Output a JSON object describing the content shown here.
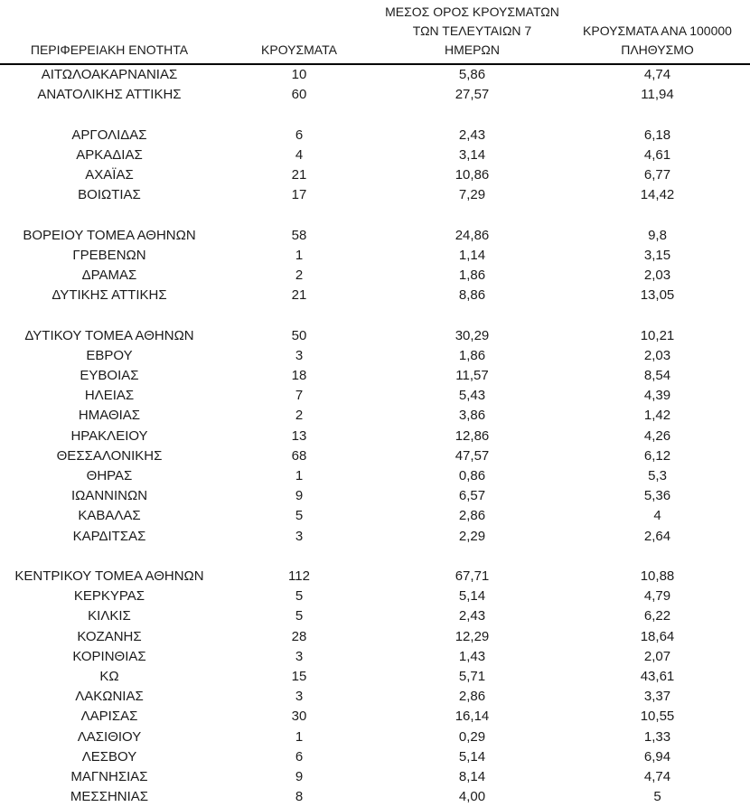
{
  "page": {
    "background_color": "#ffffff",
    "text_color": "#1b1b1b",
    "header_rule_color": "#000000"
  },
  "table": {
    "columns": [
      "ΠΕΡΙΦΕΡΕΙΑΚΗ ΕΝΟΤΗΤΑ",
      "ΚΡΟΥΣΜΑΤΑ",
      "ΜΕΣΟΣ ΟΡΟΣ ΚΡΟΥΣΜΑΤΩΝ\nΤΩΝ ΤΕΛΕΥΤΑΙΩΝ 7\nΗΜΕΡΩΝ",
      "ΚΡΟΥΣΜΑΤΑ ΑΝΑ 100000\nΠΛΗΘΥΣΜΟ"
    ],
    "groups": [
      {
        "rows": [
          [
            "ΑΙΤΩΛΟΑΚΑΡΝΑΝΙΑΣ",
            "10",
            "5,86",
            "4,74"
          ],
          [
            "ΑΝΑΤΟΛΙΚΗΣ ΑΤΤΙΚΗΣ",
            "60",
            "27,57",
            "11,94"
          ]
        ]
      },
      {
        "rows": [
          [
            "ΑΡΓΟΛΙΔΑΣ",
            "6",
            "2,43",
            "6,18"
          ],
          [
            "ΑΡΚΑΔΙΑΣ",
            "4",
            "3,14",
            "4,61"
          ],
          [
            "ΑΧΑΪΑΣ",
            "21",
            "10,86",
            "6,77"
          ],
          [
            "ΒΟΙΩΤΙΑΣ",
            "17",
            "7,29",
            "14,42"
          ]
        ]
      },
      {
        "rows": [
          [
            "ΒΟΡΕΙΟΥ ΤΟΜΕΑ ΑΘΗΝΩΝ",
            "58",
            "24,86",
            "9,8"
          ],
          [
            "ΓΡΕΒΕΝΩΝ",
            "1",
            "1,14",
            "3,15"
          ],
          [
            "ΔΡΑΜΑΣ",
            "2",
            "1,86",
            "2,03"
          ],
          [
            "ΔΥΤΙΚΗΣ ΑΤΤΙΚΗΣ",
            "21",
            "8,86",
            "13,05"
          ]
        ]
      },
      {
        "rows": [
          [
            "ΔΥΤΙΚΟΥ ΤΟΜΕΑ ΑΘΗΝΩΝ",
            "50",
            "30,29",
            "10,21"
          ],
          [
            "ΕΒΡΟΥ",
            "3",
            "1,86",
            "2,03"
          ],
          [
            "ΕΥΒΟΙΑΣ",
            "18",
            "11,57",
            "8,54"
          ],
          [
            "ΗΛΕΙΑΣ",
            "7",
            "5,43",
            "4,39"
          ],
          [
            "ΗΜΑΘΙΑΣ",
            "2",
            "3,86",
            "1,42"
          ],
          [
            "ΗΡΑΚΛΕΙΟΥ",
            "13",
            "12,86",
            "4,26"
          ],
          [
            "ΘΕΣΣΑΛΟΝΙΚΗΣ",
            "68",
            "47,57",
            "6,12"
          ],
          [
            "ΘΗΡΑΣ",
            "1",
            "0,86",
            "5,3"
          ],
          [
            "ΙΩΑΝΝΙΝΩΝ",
            "9",
            "6,57",
            "5,36"
          ],
          [
            "ΚΑΒΑΛΑΣ",
            "5",
            "2,86",
            "4"
          ],
          [
            "ΚΑΡΔΙΤΣΑΣ",
            "3",
            "2,29",
            "2,64"
          ]
        ]
      },
      {
        "rows": [
          [
            "ΚΕΝΤΡΙΚΟΥ ΤΟΜΕΑ ΑΘΗΝΩΝ",
            "112",
            "67,71",
            "10,88"
          ],
          [
            "ΚΕΡΚΥΡΑΣ",
            "5",
            "5,14",
            "4,79"
          ],
          [
            "ΚΙΛΚΙΣ",
            "5",
            "2,43",
            "6,22"
          ],
          [
            "ΚΟΖΑΝΗΣ",
            "28",
            "12,29",
            "18,64"
          ],
          [
            "ΚΟΡΙΝΘΙΑΣ",
            "3",
            "1,43",
            "2,07"
          ],
          [
            "ΚΩ",
            "15",
            "5,71",
            "43,61"
          ],
          [
            "ΛΑΚΩΝΙΑΣ",
            "3",
            "2,86",
            "3,37"
          ],
          [
            "ΛΑΡΙΣΑΣ",
            "30",
            "16,14",
            "10,55"
          ],
          [
            "ΛΑΣΙΘΙΟΥ",
            "1",
            "0,29",
            "1,33"
          ],
          [
            "ΛΕΣΒΟΥ",
            "6",
            "5,14",
            "6,94"
          ],
          [
            "ΜΑΓΝΗΣΙΑΣ",
            "9",
            "8,14",
            "4,74"
          ],
          [
            "ΜΕΣΣΗΝΙΑΣ",
            "8",
            "4,00",
            "5"
          ]
        ]
      }
    ]
  }
}
